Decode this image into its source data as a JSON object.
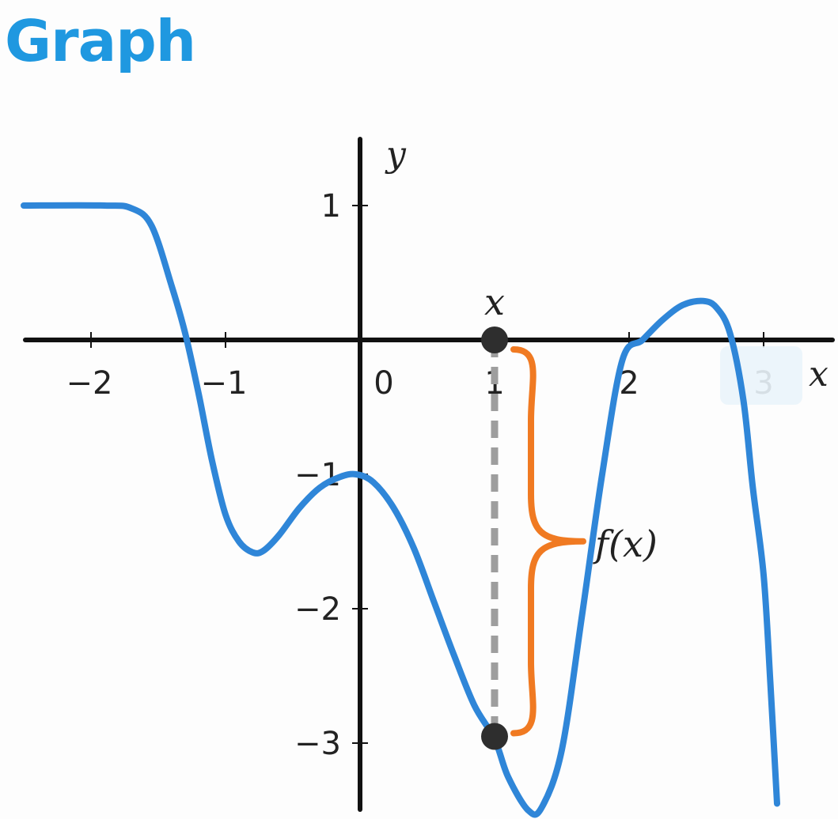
{
  "title": "Graph",
  "colors": {
    "title": "#1f98e0",
    "curve": "#2f86d8",
    "axis": "#111111",
    "brace": "#f07a22",
    "dashed": "#9e9e9e",
    "point": "#2e2e2e"
  },
  "chart_data": {
    "type": "line",
    "title": "",
    "xlabel": "x",
    "ylabel": "y",
    "xlim": [
      -2.5,
      3.5
    ],
    "ylim": [
      -3.5,
      1.5
    ],
    "xticks": [
      {
        "value": -2,
        "label": "−2"
      },
      {
        "value": -1,
        "label": "−1"
      },
      {
        "value": 0,
        "label": "0"
      },
      {
        "value": 1,
        "label": "1"
      },
      {
        "value": 2,
        "label": "2"
      },
      {
        "value": 3,
        "label": "3"
      }
    ],
    "yticks": [
      {
        "value": 1,
        "label": "1"
      },
      {
        "value": -1,
        "label": "−1"
      },
      {
        "value": -2,
        "label": "−2"
      },
      {
        "value": -3,
        "label": "−3"
      }
    ],
    "grid": false,
    "series": [
      {
        "x": [
          -2.5,
          -1.9,
          -1.7,
          -1.55,
          -1.4,
          -1.3,
          -1.2,
          -1.1,
          -1.0,
          -0.9,
          -0.8,
          -0.72,
          -0.6,
          -0.45,
          -0.3,
          -0.15,
          -0.03,
          0.1,
          0.25,
          0.4,
          0.55,
          0.7,
          0.85,
          1.0,
          1.1,
          1.25,
          1.35,
          1.5,
          1.65,
          1.8,
          1.95,
          2.1,
          2.25,
          2.4,
          2.55,
          2.65,
          2.75,
          2.85,
          2.92,
          3.0,
          3.05,
          3.1
        ],
        "y": [
          1.0,
          1.0,
          0.98,
          0.85,
          0.4,
          0.05,
          -0.4,
          -0.9,
          -1.3,
          -1.5,
          -1.58,
          -1.57,
          -1.45,
          -1.25,
          -1.1,
          -1.02,
          -1.0,
          -1.06,
          -1.25,
          -1.55,
          -1.95,
          -2.35,
          -2.72,
          -2.97,
          -3.25,
          -3.5,
          -3.48,
          -3.05,
          -2.05,
          -1.0,
          -0.15,
          0.0,
          0.15,
          0.26,
          0.29,
          0.24,
          0.05,
          -0.45,
          -1.1,
          -1.75,
          -2.55,
          -3.45
        ]
      }
    ],
    "annotations": {
      "point_x": 1,
      "point_y": -2.95,
      "top_label": "x",
      "brace_label": "f(x)"
    }
  }
}
